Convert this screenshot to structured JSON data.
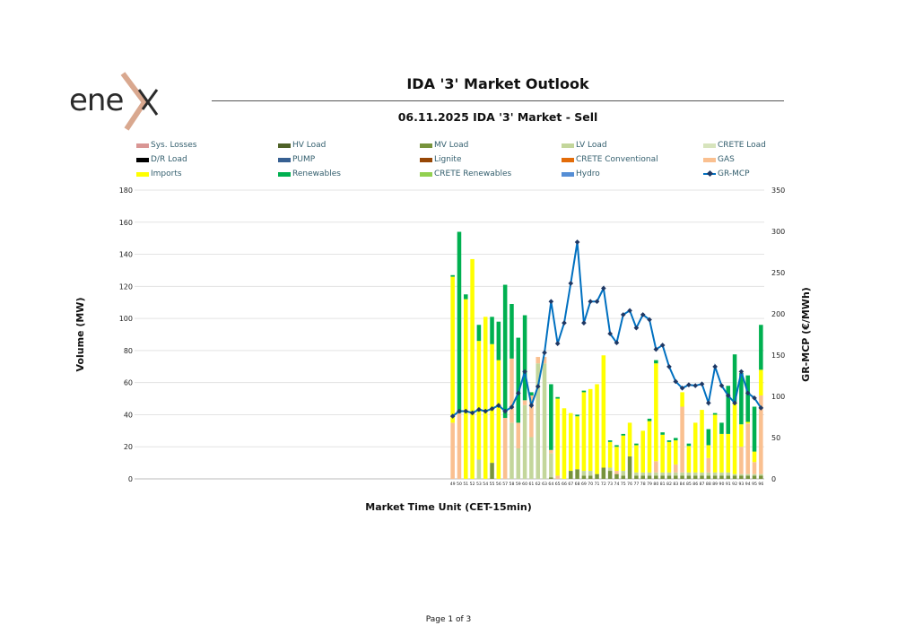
{
  "header": {
    "title": "IDA '3' Market Outlook",
    "logo_text": "enex"
  },
  "footer": {
    "page": "Page 1 of 3"
  },
  "chart_data": {
    "type": "bar",
    "subtitle": "06.11.2025  IDA '3' Market - Sell",
    "xlabel": "Market Time Unit (CET-15min)",
    "ylabel": "Volume (MW)",
    "y2label": "GR-MCP (€/MWh)",
    "x_range": [
      1,
      96
    ],
    "ylim": [
      0,
      180
    ],
    "yticks": [
      0,
      20,
      40,
      60,
      80,
      100,
      120,
      140,
      160,
      180
    ],
    "y2lim": [
      0,
      350
    ],
    "y2ticks": [
      0,
      50,
      100,
      150,
      200,
      250,
      300,
      350
    ],
    "grid": true,
    "stacked": true,
    "legend_position": "top",
    "legend": [
      {
        "name": "Sys. Losses",
        "color": "#d99694"
      },
      {
        "name": "HV Load",
        "color": "#4f6228"
      },
      {
        "name": "MV Load",
        "color": "#77933c"
      },
      {
        "name": "LV Load",
        "color": "#c3d69b"
      },
      {
        "name": "CRETE Load",
        "color": "#d7e4bd"
      },
      {
        "name": "D/R Load",
        "color": "#000000"
      },
      {
        "name": "PUMP",
        "color": "#376092"
      },
      {
        "name": "Lignite",
        "color": "#974706"
      },
      {
        "name": "CRETE Conventional",
        "color": "#e36c09"
      },
      {
        "name": "GAS",
        "color": "#fac090"
      },
      {
        "name": "Imports",
        "color": "#ffff00"
      },
      {
        "name": "Renewables",
        "color": "#00b050"
      },
      {
        "name": "CRETE Renewables",
        "color": "#92d050"
      },
      {
        "name": "Hydro",
        "color": "#558ed5"
      },
      {
        "name": "GR-MCP",
        "color": "#0070c0",
        "line": true
      }
    ],
    "categories": [
      "49",
      "50",
      "51",
      "52",
      "53",
      "54",
      "55",
      "56",
      "57",
      "58",
      "59",
      "60",
      "61",
      "62",
      "63",
      "64",
      "65",
      "66",
      "67",
      "68",
      "69",
      "70",
      "71",
      "72",
      "73",
      "74",
      "75",
      "76",
      "77",
      "78",
      "79",
      "80",
      "81",
      "82",
      "83",
      "84",
      "85",
      "86",
      "87",
      "88",
      "89",
      "90",
      "91",
      "92",
      "93",
      "94",
      "95",
      "96"
    ],
    "series": [
      {
        "name": "MV Load",
        "color": "#77933c",
        "values": [
          0,
          0,
          0,
          0,
          0,
          0,
          10,
          0,
          0,
          0,
          0,
          0,
          0,
          0,
          0,
          1,
          0,
          0,
          5,
          6,
          2,
          2,
          3,
          7,
          5,
          3,
          2,
          14,
          2,
          2,
          2,
          2,
          2,
          2,
          2,
          2,
          2,
          2,
          2,
          2,
          2,
          2,
          2,
          2,
          2,
          2,
          2,
          2
        ]
      },
      {
        "name": "LV Load",
        "color": "#c3d69b",
        "values": [
          0,
          0,
          0,
          0,
          12,
          0,
          0,
          0,
          0,
          35,
          19,
          46,
          26,
          72,
          72,
          15,
          0,
          0,
          0,
          0,
          3,
          3,
          0,
          0,
          2,
          0,
          3,
          0,
          2,
          2,
          2,
          2,
          2,
          2,
          2,
          2,
          2,
          2,
          2,
          2,
          2,
          2,
          2,
          1,
          1,
          1,
          1,
          1
        ]
      },
      {
        "name": "GAS",
        "color": "#fac090",
        "values": [
          35,
          41,
          0,
          0,
          0,
          0,
          0,
          0,
          38,
          40,
          16,
          3,
          26,
          4,
          4,
          2,
          2,
          0,
          0,
          0,
          0,
          0,
          0,
          0,
          0,
          2,
          0,
          0,
          0,
          0,
          0,
          7,
          0,
          0,
          5,
          41,
          0,
          0,
          0,
          9,
          0,
          0,
          0,
          0,
          17,
          31.5,
          7.5,
          49
        ]
      },
      {
        "name": "Imports",
        "color": "#ffff00",
        "values": [
          91,
          0,
          112,
          137,
          74,
          101,
          74,
          74,
          0,
          0,
          0,
          0,
          0,
          0,
          0,
          0,
          48,
          44,
          36,
          33,
          49,
          51,
          56,
          70,
          16,
          15,
          22,
          21,
          17,
          26,
          32,
          61,
          23.5,
          19,
          15,
          9,
          16.5,
          31,
          39,
          8,
          36,
          24,
          24,
          45,
          14,
          1,
          6.5,
          16
        ]
      },
      {
        "name": "Renewables",
        "color": "#00b050",
        "values": [
          1,
          113,
          3,
          0,
          10,
          0,
          17,
          24,
          83,
          34,
          53,
          53,
          2,
          0,
          0,
          41,
          1,
          0,
          0,
          1,
          1,
          0,
          0,
          0,
          1,
          1,
          1,
          0,
          1,
          0,
          1.5,
          2,
          1.5,
          1,
          1.5,
          0,
          1.5,
          0,
          0,
          10,
          1,
          7,
          30,
          29.6,
          32,
          29,
          28,
          28
        ]
      }
    ],
    "line": {
      "name": "GR-MCP",
      "axis": "right",
      "color": "#0070c0",
      "marker_color": "#1f3864",
      "values": [
        76,
        82,
        82,
        80,
        84,
        82,
        85,
        89,
        82,
        87,
        104,
        130,
        89,
        112,
        153,
        215,
        164,
        189,
        237,
        287,
        189,
        215,
        215,
        231,
        176,
        165,
        199,
        204,
        183,
        199,
        193,
        157,
        162,
        136,
        118,
        110,
        114,
        113,
        115,
        92,
        136,
        113,
        101,
        92,
        130,
        104,
        98,
        86
      ]
    }
  }
}
